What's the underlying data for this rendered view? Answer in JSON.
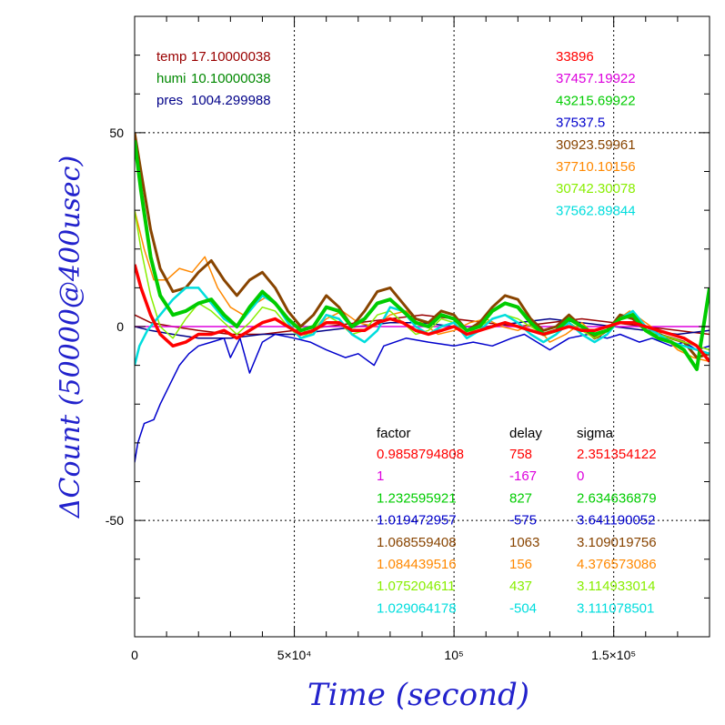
{
  "chart_data": {
    "type": "line",
    "title": "",
    "xlabel": "Time (second)",
    "ylabel": "ΔCount (50000@400usec)",
    "xlim": [
      0,
      180000
    ],
    "ylim": [
      -80,
      80
    ],
    "grid": true,
    "x_ticks": [
      {
        "value": 0,
        "label": "0"
      },
      {
        "value": 50000,
        "label": "5×10⁴"
      },
      {
        "value": 100000,
        "label": "10⁵"
      },
      {
        "value": 150000,
        "label": "1.5×10⁵"
      }
    ],
    "y_ticks": [
      {
        "value": 50,
        "label": "50"
      },
      {
        "value": 0,
        "label": "0"
      },
      {
        "value": -50,
        "label": "-50"
      }
    ],
    "env": [
      {
        "label": "temp",
        "value": "17.10000038",
        "color": "#990000"
      },
      {
        "label": "humi",
        "value": "10.10000038",
        "color": "#008800"
      },
      {
        "label": "pres",
        "value": "1004.299988",
        "color": "#000088"
      }
    ],
    "channel_headers": {
      "factor": "factor",
      "delay": "delay",
      "sigma": "sigma"
    },
    "channels": [
      {
        "base": "33896",
        "factor": "0.9858794808",
        "delay": "758",
        "sigma": "2.351354122",
        "color": "#ff0000"
      },
      {
        "base": "37457.19922",
        "factor": "1",
        "delay": "-167",
        "sigma": "0",
        "color": "#dd00dd"
      },
      {
        "base": "43215.69922",
        "factor": "1.232595921",
        "delay": "827",
        "sigma": "2.634636879",
        "color": "#00cc00"
      },
      {
        "base": "37537.5",
        "factor": "1.019472957",
        "delay": "-575",
        "sigma": "3.641190052",
        "color": "#0000cc"
      },
      {
        "base": "30923.59961",
        "factor": "1.068559408",
        "delay": "1063",
        "sigma": "3.109019756",
        "color": "#884400"
      },
      {
        "base": "37710.10156",
        "factor": "1.084439516",
        "delay": "156",
        "sigma": "4.376573086",
        "color": "#ff8800"
      },
      {
        "base": "30742.30078",
        "factor": "1.075204611",
        "delay": "437",
        "sigma": "3.114933014",
        "color": "#88ee00"
      },
      {
        "base": "37562.89844",
        "factor": "1.029064178",
        "delay": "-504",
        "sigma": "3.111078501",
        "color": "#00dddd"
      }
    ],
    "series": [
      {
        "color": "#990000",
        "x": [
          0,
          5000,
          12000,
          20000,
          30000,
          40000,
          50000,
          60000,
          70000,
          80000,
          90000,
          100000,
          110000,
          120000,
          130000,
          140000,
          150000,
          160000,
          170000,
          180000
        ],
        "y": [
          3,
          1,
          0,
          -1,
          -2,
          -2,
          -1,
          0,
          1,
          2,
          3,
          2,
          1,
          0,
          1,
          2,
          1,
          0,
          -1,
          -2
        ]
      },
      {
        "color": "#000088",
        "x": [
          0,
          5000,
          12000,
          20000,
          30000,
          40000,
          50000,
          60000,
          70000,
          80000,
          90000,
          100000,
          110000,
          120000,
          130000,
          140000,
          150000,
          160000,
          170000,
          180000
        ],
        "y": [
          0,
          -1,
          -2,
          -3,
          -3,
          -2,
          -2,
          -1,
          0,
          1,
          1,
          0,
          0,
          1,
          2,
          1,
          0,
          -1,
          -2,
          -1
        ]
      },
      {
        "color": "#dd00dd",
        "x": [
          0,
          180000
        ],
        "y": [
          0,
          0
        ]
      },
      {
        "color": "#0000cc",
        "x": [
          0,
          1000,
          3000,
          6000,
          8000,
          11000,
          14000,
          17000,
          20000,
          24000,
          28000,
          30000,
          33000,
          36000,
          40000,
          44000,
          50000,
          55000,
          60000,
          66000,
          70000,
          75000,
          78000,
          85000,
          92000,
          100000,
          106000,
          112000,
          118000,
          122000,
          126000,
          130000,
          136000,
          142000,
          148000,
          152000,
          158000,
          162000,
          168000,
          172000,
          176000,
          180000
        ],
        "y": [
          -35,
          -30,
          -25,
          -24,
          -20,
          -15,
          -10,
          -7,
          -5,
          -4,
          -3,
          -8,
          -3,
          -12,
          -4,
          -2,
          -3,
          -4,
          -6,
          -8,
          -7,
          -10,
          -5,
          -3,
          -4,
          -5,
          -4,
          -5,
          -3,
          -2,
          -4,
          -6,
          -3,
          -2,
          -3,
          -2,
          -4,
          -3,
          -5,
          -4,
          -6,
          -5
        ]
      },
      {
        "color": "#ff8800",
        "x": [
          0,
          1500,
          3000,
          6000,
          10000,
          14000,
          18000,
          22000,
          26000,
          30000,
          34000,
          38000,
          42000,
          46000,
          50000,
          55000,
          60000,
          65000,
          70000,
          75000,
          80000,
          85000,
          90000,
          95000,
          100000,
          105000,
          110000,
          115000,
          120000,
          125000,
          130000,
          135000,
          140000,
          145000,
          150000,
          155000,
          160000,
          165000,
          170000,
          175000,
          180000
        ],
        "y": [
          30,
          25,
          20,
          12,
          12,
          15,
          14,
          18,
          10,
          5,
          3,
          6,
          8,
          4,
          0,
          -2,
          2,
          4,
          1,
          0,
          3,
          4,
          1,
          -2,
          -1,
          1,
          2,
          0,
          -1,
          1,
          -4,
          -2,
          1,
          -3,
          1,
          4,
          1,
          -2,
          -6,
          -8,
          -9
        ]
      },
      {
        "color": "#884400",
        "x": [
          0,
          2000,
          5000,
          8000,
          12000,
          16000,
          20000,
          24000,
          28000,
          32000,
          36000,
          40000,
          44000,
          48000,
          52000,
          56000,
          60000,
          64000,
          68000,
          72000,
          76000,
          80000,
          84000,
          88000,
          92000,
          96000,
          100000,
          104000,
          108000,
          112000,
          116000,
          120000,
          124000,
          128000,
          132000,
          136000,
          140000,
          144000,
          148000,
          152000,
          156000,
          160000,
          164000,
          168000,
          172000,
          176000,
          180000
        ],
        "y": [
          50,
          40,
          25,
          15,
          9,
          10,
          14,
          17,
          12,
          8,
          12,
          14,
          10,
          4,
          0,
          3,
          8,
          5,
          0,
          4,
          9,
          10,
          6,
          2,
          1,
          4,
          3,
          -1,
          1,
          5,
          8,
          7,
          2,
          -1,
          0,
          3,
          0,
          -3,
          -1,
          3,
          2,
          -1,
          -2,
          -3,
          -4,
          -8,
          -7
        ]
      },
      {
        "color": "#88ee00",
        "x": [
          0,
          2000,
          5000,
          8000,
          12000,
          16000,
          20000,
          24000,
          28000,
          32000,
          36000,
          40000,
          44000,
          48000,
          52000,
          56000,
          60000,
          64000,
          68000,
          72000,
          76000,
          80000,
          84000,
          88000,
          92000,
          96000,
          100000,
          104000,
          108000,
          112000,
          116000,
          120000,
          124000,
          128000,
          132000,
          136000,
          140000,
          144000,
          148000,
          152000,
          156000,
          160000,
          164000,
          168000,
          172000,
          176000,
          180000
        ],
        "y": [
          30,
          20,
          8,
          0,
          -3,
          2,
          6,
          4,
          1,
          -2,
          1,
          5,
          4,
          0,
          -3,
          -1,
          3,
          1,
          -2,
          -1,
          3,
          4,
          1,
          -2,
          -1,
          2,
          1,
          -2,
          0,
          2,
          3,
          2,
          0,
          -2,
          -1,
          1,
          -1,
          -3,
          -1,
          2,
          3,
          -1,
          -2,
          -3,
          -4,
          -5,
          -6
        ]
      },
      {
        "color": "#00dddd",
        "x": [
          0,
          1500,
          4000,
          8000,
          12000,
          16000,
          20000,
          24000,
          28000,
          32000,
          36000,
          40000,
          44000,
          48000,
          52000,
          56000,
          60000,
          64000,
          68000,
          72000,
          76000,
          80000,
          84000,
          88000,
          92000,
          96000,
          100000,
          104000,
          108000,
          112000,
          116000,
          120000,
          124000,
          128000,
          132000,
          136000,
          140000,
          144000,
          148000,
          152000,
          156000,
          160000,
          164000,
          168000,
          172000,
          176000,
          180000
        ],
        "y": [
          -10,
          -5,
          -1,
          3,
          7,
          10,
          10,
          6,
          2,
          0,
          4,
          8,
          6,
          1,
          -3,
          -2,
          3,
          2,
          -2,
          -4,
          -1,
          5,
          4,
          0,
          -2,
          0,
          1,
          -3,
          -1,
          2,
          3,
          1,
          -2,
          -4,
          -2,
          1,
          -2,
          -4,
          -2,
          2,
          4,
          0,
          -2,
          -4,
          -5,
          -6,
          -7
        ]
      },
      {
        "color": "#00cc00",
        "x": [
          0,
          2000,
          5000,
          8000,
          12000,
          16000,
          20000,
          24000,
          28000,
          32000,
          36000,
          40000,
          44000,
          48000,
          52000,
          56000,
          60000,
          64000,
          68000,
          72000,
          76000,
          80000,
          84000,
          88000,
          92000,
          96000,
          100000,
          104000,
          108000,
          112000,
          116000,
          120000,
          124000,
          128000,
          132000,
          136000,
          140000,
          144000,
          148000,
          152000,
          156000,
          160000,
          164000,
          168000,
          172000,
          176000,
          180000
        ],
        "y": [
          48,
          35,
          18,
          8,
          3,
          4,
          6,
          7,
          3,
          0,
          5,
          9,
          6,
          2,
          -1,
          0,
          5,
          4,
          0,
          2,
          6,
          7,
          4,
          1,
          0,
          3,
          2,
          -1,
          0,
          4,
          6,
          5,
          1,
          -2,
          -1,
          2,
          0,
          -2,
          -1,
          2,
          3,
          -1,
          -3,
          -4,
          -6,
          -11,
          10
        ]
      },
      {
        "color": "#ff0000",
        "x": [
          0,
          2000,
          5000,
          8000,
          12000,
          16000,
          20000,
          24000,
          28000,
          32000,
          36000,
          40000,
          44000,
          48000,
          52000,
          56000,
          60000,
          64000,
          68000,
          72000,
          76000,
          80000,
          84000,
          88000,
          92000,
          96000,
          100000,
          104000,
          108000,
          112000,
          116000,
          120000,
          124000,
          128000,
          132000,
          136000,
          140000,
          144000,
          148000,
          152000,
          156000,
          160000,
          164000,
          168000,
          172000,
          176000,
          180000
        ],
        "y": [
          16,
          10,
          3,
          -2,
          -5,
          -4,
          -2,
          -2,
          -1,
          -3,
          -1,
          1,
          2,
          0,
          -2,
          -1,
          1,
          1,
          -1,
          -1,
          1,
          2,
          1,
          -1,
          -2,
          -1,
          0,
          -2,
          -1,
          0,
          1,
          0,
          -1,
          -2,
          -1,
          0,
          -1,
          -1,
          0,
          1,
          1,
          0,
          -1,
          -2,
          -3,
          -5,
          -9
        ]
      }
    ]
  }
}
